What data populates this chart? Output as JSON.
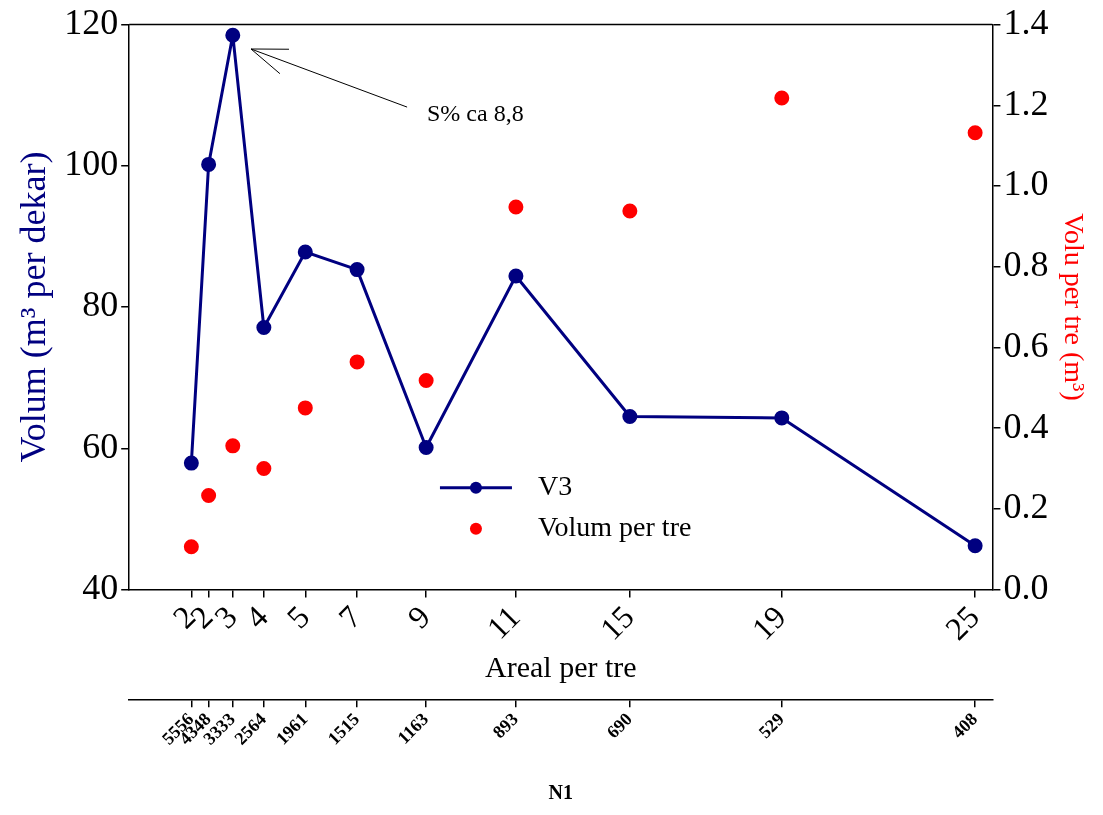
{
  "chart_data": {
    "type": "line",
    "xlabel": "Areal per tre",
    "ylabel": "Volum (m³ per dekar)",
    "y2label": "Volu per tre (m³)",
    "x2label": "N1",
    "x": [
      1.8,
      2.3,
      3.0,
      3.9,
      5.1,
      6.6,
      8.6,
      11.2,
      14.5,
      18.9,
      24.5
    ],
    "series": [
      {
        "name": "V3",
        "type": "line",
        "color": "#000080",
        "values": [
          57.9,
          100.2,
          118.5,
          77.1,
          87.8,
          85.3,
          60.1,
          84.4,
          64.5,
          64.3,
          46.2
        ]
      },
      {
        "name": "Volum per tre",
        "type": "scatter",
        "axis": "y2",
        "color": "#ff0000",
        "values": [
          0.106,
          0.233,
          0.356,
          0.3,
          0.45,
          0.564,
          0.518,
          0.948,
          0.938,
          1.218,
          1.132
        ]
      }
    ],
    "xlim": [
      0,
      25
    ],
    "xticks": [
      {
        "value": 1.8,
        "label": "2"
      },
      {
        "value": 2.3,
        "label": "2"
      },
      {
        "value": 3.0,
        "label": "3"
      },
      {
        "value": 3.9,
        "label": "4"
      },
      {
        "value": 5.1,
        "label": "5"
      },
      {
        "value": 6.6,
        "label": "7"
      },
      {
        "value": 8.6,
        "label": "9"
      },
      {
        "value": 11.2,
        "label": "11"
      },
      {
        "value": 14.5,
        "label": "15"
      },
      {
        "value": 18.9,
        "label": "19"
      },
      {
        "value": 24.5,
        "label": "25"
      }
    ],
    "ylim": [
      40,
      120
    ],
    "yticks": [
      40,
      60,
      80,
      100,
      120
    ],
    "y2lim": [
      0,
      1.4
    ],
    "y2ticks": [
      {
        "value": 0,
        "label": "0.0"
      },
      0.2,
      0.4,
      0.6,
      0.8,
      {
        "value": 1,
        "label": "1.0"
      },
      1.2,
      1.4
    ],
    "annotations": [
      "S% ca 8,8",
      "5556",
      "4348",
      "3333",
      "2564",
      "1961",
      "1515",
      "1163",
      "893",
      "690",
      "529",
      "408"
    ],
    "legend": "bottom",
    "marker": "circle",
    "line_style": "solid",
    "grid": false
  }
}
